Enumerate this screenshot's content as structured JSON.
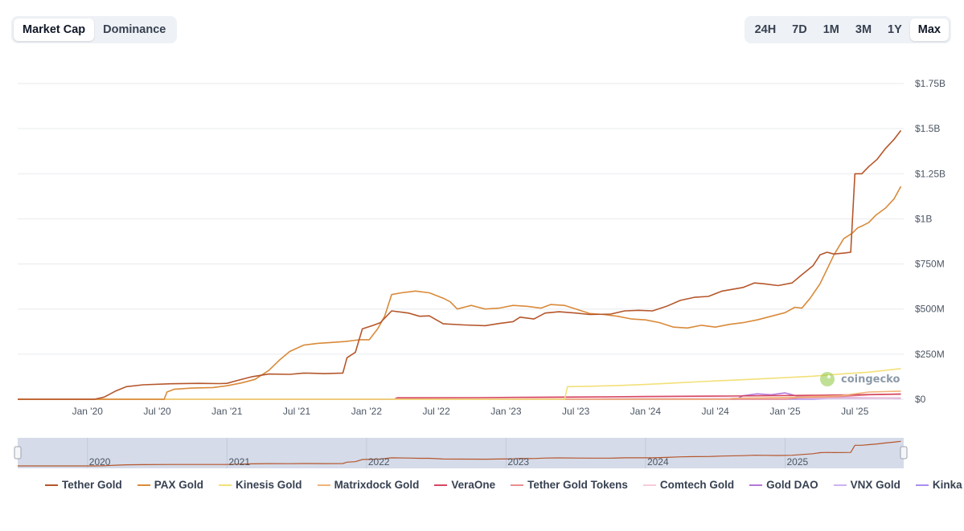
{
  "tabs": {
    "metric": [
      {
        "label": "Market Cap",
        "active": true
      },
      {
        "label": "Dominance",
        "active": false
      }
    ],
    "range": [
      {
        "label": "24H",
        "active": false
      },
      {
        "label": "7D",
        "active": false
      },
      {
        "label": "1M",
        "active": false
      },
      {
        "label": "3M",
        "active": false
      },
      {
        "label": "1Y",
        "active": false
      },
      {
        "label": "Max",
        "active": true
      }
    ]
  },
  "watermark": {
    "text": "coingecko",
    "icon": "gecko-logo-icon"
  },
  "chart_data": {
    "type": "line",
    "title": "",
    "xlabel": "",
    "ylabel": "",
    "xlim": [
      2019.5,
      2025.85
    ],
    "ylim": [
      0,
      1750000000
    ],
    "grid": "horizontal",
    "y_ticks": [
      {
        "value": 0,
        "label": "$0"
      },
      {
        "value": 250000000,
        "label": "$250M"
      },
      {
        "value": 500000000,
        "label": "$500M"
      },
      {
        "value": 750000000,
        "label": "$750M"
      },
      {
        "value": 1000000000,
        "label": "$1B"
      },
      {
        "value": 1250000000,
        "label": "$1.25B"
      },
      {
        "value": 1500000000,
        "label": "$1.5B"
      },
      {
        "value": 1750000000,
        "label": "$1.75B"
      }
    ],
    "x_ticks": [
      {
        "value": 2020.0,
        "label": "Jan '20"
      },
      {
        "value": 2020.5,
        "label": "Jul '20"
      },
      {
        "value": 2021.0,
        "label": "Jan '21"
      },
      {
        "value": 2021.5,
        "label": "Jul '21"
      },
      {
        "value": 2022.0,
        "label": "Jan '22"
      },
      {
        "value": 2022.5,
        "label": "Jul '22"
      },
      {
        "value": 2023.0,
        "label": "Jan '23"
      },
      {
        "value": 2023.5,
        "label": "Jul '23"
      },
      {
        "value": 2024.0,
        "label": "Jan '24"
      },
      {
        "value": 2024.5,
        "label": "Jul '24"
      },
      {
        "value": 2025.0,
        "label": "Jan '25"
      },
      {
        "value": 2025.5,
        "label": "Jul '25"
      }
    ],
    "navigator": {
      "labels": [
        {
          "value": 2020.0,
          "label": "2020"
        },
        {
          "value": 2021.0,
          "label": "2021"
        },
        {
          "value": 2022.0,
          "label": "2022"
        },
        {
          "value": 2023.0,
          "label": "2023"
        },
        {
          "value": 2024.0,
          "label": "2024"
        },
        {
          "value": 2025.0,
          "label": "2025"
        }
      ]
    },
    "series": [
      {
        "name": "Tether Gold",
        "color": "#b5562b",
        "points": [
          [
            2019.5,
            0
          ],
          [
            2020.05,
            0
          ],
          [
            2020.12,
            12000000
          ],
          [
            2020.2,
            45000000
          ],
          [
            2020.28,
            70000000
          ],
          [
            2020.4,
            80000000
          ],
          [
            2020.6,
            86000000
          ],
          [
            2020.8,
            88000000
          ],
          [
            2020.95,
            87000000
          ],
          [
            2021.0,
            88000000
          ],
          [
            2021.08,
            105000000
          ],
          [
            2021.18,
            125000000
          ],
          [
            2021.3,
            140000000
          ],
          [
            2021.45,
            138000000
          ],
          [
            2021.55,
            145000000
          ],
          [
            2021.7,
            142000000
          ],
          [
            2021.83,
            145000000
          ],
          [
            2021.86,
            230000000
          ],
          [
            2021.92,
            260000000
          ],
          [
            2021.97,
            390000000
          ],
          [
            2022.05,
            410000000
          ],
          [
            2022.1,
            425000000
          ],
          [
            2022.18,
            490000000
          ],
          [
            2022.3,
            478000000
          ],
          [
            2022.38,
            460000000
          ],
          [
            2022.45,
            462000000
          ],
          [
            2022.55,
            418000000
          ],
          [
            2022.7,
            412000000
          ],
          [
            2022.85,
            408000000
          ],
          [
            2022.95,
            420000000
          ],
          [
            2023.05,
            430000000
          ],
          [
            2023.1,
            455000000
          ],
          [
            2023.2,
            445000000
          ],
          [
            2023.28,
            478000000
          ],
          [
            2023.38,
            485000000
          ],
          [
            2023.5,
            478000000
          ],
          [
            2023.6,
            470000000
          ],
          [
            2023.75,
            472000000
          ],
          [
            2023.85,
            490000000
          ],
          [
            2023.95,
            493000000
          ],
          [
            2024.05,
            490000000
          ],
          [
            2024.15,
            515000000
          ],
          [
            2024.25,
            548000000
          ],
          [
            2024.35,
            565000000
          ],
          [
            2024.45,
            570000000
          ],
          [
            2024.55,
            600000000
          ],
          [
            2024.7,
            620000000
          ],
          [
            2024.78,
            645000000
          ],
          [
            2024.85,
            640000000
          ],
          [
            2024.95,
            630000000
          ],
          [
            2025.05,
            645000000
          ],
          [
            2025.12,
            690000000
          ],
          [
            2025.2,
            740000000
          ],
          [
            2025.25,
            800000000
          ],
          [
            2025.3,
            815000000
          ],
          [
            2025.35,
            805000000
          ],
          [
            2025.42,
            810000000
          ],
          [
            2025.47,
            815000000
          ],
          [
            2025.5,
            1250000000
          ],
          [
            2025.55,
            1250000000
          ],
          [
            2025.6,
            1290000000
          ],
          [
            2025.66,
            1330000000
          ],
          [
            2025.72,
            1390000000
          ],
          [
            2025.78,
            1440000000
          ],
          [
            2025.83,
            1490000000
          ]
        ]
      },
      {
        "name": "PAX Gold",
        "color": "#d98a3a",
        "points": [
          [
            2019.5,
            0
          ],
          [
            2020.55,
            0
          ],
          [
            2020.57,
            40000000
          ],
          [
            2020.62,
            55000000
          ],
          [
            2020.75,
            62000000
          ],
          [
            2020.9,
            65000000
          ],
          [
            2021.0,
            75000000
          ],
          [
            2021.1,
            90000000
          ],
          [
            2021.2,
            110000000
          ],
          [
            2021.3,
            160000000
          ],
          [
            2021.38,
            220000000
          ],
          [
            2021.45,
            265000000
          ],
          [
            2021.55,
            300000000
          ],
          [
            2021.65,
            310000000
          ],
          [
            2021.75,
            315000000
          ],
          [
            2021.85,
            320000000
          ],
          [
            2021.9,
            325000000
          ],
          [
            2021.95,
            330000000
          ],
          [
            2022.02,
            330000000
          ],
          [
            2022.08,
            390000000
          ],
          [
            2022.13,
            460000000
          ],
          [
            2022.18,
            580000000
          ],
          [
            2022.25,
            590000000
          ],
          [
            2022.35,
            600000000
          ],
          [
            2022.45,
            590000000
          ],
          [
            2022.55,
            560000000
          ],
          [
            2022.6,
            540000000
          ],
          [
            2022.65,
            500000000
          ],
          [
            2022.75,
            520000000
          ],
          [
            2022.85,
            500000000
          ],
          [
            2022.95,
            505000000
          ],
          [
            2023.05,
            520000000
          ],
          [
            2023.15,
            515000000
          ],
          [
            2023.25,
            505000000
          ],
          [
            2023.32,
            525000000
          ],
          [
            2023.42,
            520000000
          ],
          [
            2023.52,
            495000000
          ],
          [
            2023.6,
            475000000
          ],
          [
            2023.7,
            470000000
          ],
          [
            2023.8,
            460000000
          ],
          [
            2023.9,
            445000000
          ],
          [
            2024.0,
            440000000
          ],
          [
            2024.1,
            425000000
          ],
          [
            2024.2,
            400000000
          ],
          [
            2024.3,
            395000000
          ],
          [
            2024.4,
            410000000
          ],
          [
            2024.5,
            400000000
          ],
          [
            2024.6,
            415000000
          ],
          [
            2024.7,
            425000000
          ],
          [
            2024.8,
            440000000
          ],
          [
            2024.9,
            460000000
          ],
          [
            2025.0,
            480000000
          ],
          [
            2025.07,
            510000000
          ],
          [
            2025.12,
            505000000
          ],
          [
            2025.18,
            560000000
          ],
          [
            2025.25,
            640000000
          ],
          [
            2025.3,
            720000000
          ],
          [
            2025.35,
            800000000
          ],
          [
            2025.42,
            890000000
          ],
          [
            2025.48,
            920000000
          ],
          [
            2025.52,
            950000000
          ],
          [
            2025.55,
            960000000
          ],
          [
            2025.6,
            980000000
          ],
          [
            2025.65,
            1020000000
          ],
          [
            2025.72,
            1060000000
          ],
          [
            2025.78,
            1110000000
          ],
          [
            2025.83,
            1180000000
          ]
        ]
      },
      {
        "name": "Kinesis Gold",
        "color": "#f2e07a",
        "points": [
          [
            2019.5,
            0
          ],
          [
            2023.42,
            0
          ],
          [
            2023.44,
            70000000
          ],
          [
            2023.6,
            72000000
          ],
          [
            2023.8,
            76000000
          ],
          [
            2024.0,
            82000000
          ],
          [
            2024.2,
            90000000
          ],
          [
            2024.4,
            98000000
          ],
          [
            2024.6,
            105000000
          ],
          [
            2024.8,
            112000000
          ],
          [
            2025.0,
            120000000
          ],
          [
            2025.2,
            128000000
          ],
          [
            2025.4,
            140000000
          ],
          [
            2025.6,
            150000000
          ],
          [
            2025.83,
            170000000
          ]
        ]
      },
      {
        "name": "Matrixdock Gold",
        "color": "#f0b378",
        "points": [
          [
            2019.5,
            0
          ],
          [
            2024.6,
            0
          ],
          [
            2024.62,
            5000000
          ],
          [
            2025.0,
            10000000
          ],
          [
            2025.4,
            20000000
          ],
          [
            2025.6,
            40000000
          ],
          [
            2025.83,
            45000000
          ]
        ]
      },
      {
        "name": "VeraOne",
        "color": "#d64560",
        "points": [
          [
            2019.5,
            0
          ],
          [
            2022.2,
            0
          ],
          [
            2022.22,
            8000000
          ],
          [
            2022.8,
            9000000
          ],
          [
            2023.4,
            12000000
          ],
          [
            2024.0,
            15000000
          ],
          [
            2024.6,
            18000000
          ],
          [
            2025.2,
            22000000
          ],
          [
            2025.6,
            26000000
          ],
          [
            2025.83,
            28000000
          ]
        ]
      },
      {
        "name": "Tether Gold Tokens",
        "color": "#e98d8d",
        "points": [
          [
            2019.5,
            0
          ],
          [
            2025.0,
            0
          ],
          [
            2025.1,
            8000000
          ],
          [
            2025.4,
            15000000
          ],
          [
            2025.6,
            25000000
          ],
          [
            2025.83,
            30000000
          ]
        ]
      },
      {
        "name": "Comtech Gold",
        "color": "#f6cbd8",
        "points": [
          [
            2019.5,
            0
          ],
          [
            2023.0,
            0
          ],
          [
            2023.2,
            3000000
          ],
          [
            2024.0,
            5000000
          ],
          [
            2025.0,
            6000000
          ],
          [
            2025.83,
            7000000
          ]
        ]
      },
      {
        "name": "Gold DAO",
        "color": "#b476d8",
        "points": [
          [
            2019.5,
            0
          ],
          [
            2024.65,
            0
          ],
          [
            2024.7,
            20000000
          ],
          [
            2024.8,
            30000000
          ],
          [
            2024.9,
            25000000
          ],
          [
            2025.0,
            35000000
          ],
          [
            2025.1,
            15000000
          ],
          [
            2025.3,
            10000000
          ],
          [
            2025.5,
            8000000
          ],
          [
            2025.83,
            5000000
          ]
        ]
      },
      {
        "name": "VNX Gold",
        "color": "#ccb3ef",
        "points": [
          [
            2019.5,
            0
          ],
          [
            2023.6,
            0
          ],
          [
            2023.7,
            4000000
          ],
          [
            2024.5,
            6000000
          ],
          [
            2025.3,
            8000000
          ],
          [
            2025.83,
            9000000
          ]
        ]
      },
      {
        "name": "Kinka",
        "color": "#a98ef0",
        "points": [
          [
            2019.5,
            0
          ],
          [
            2025.2,
            0
          ],
          [
            2025.3,
            4000000
          ],
          [
            2025.83,
            6000000
          ]
        ]
      }
    ]
  }
}
